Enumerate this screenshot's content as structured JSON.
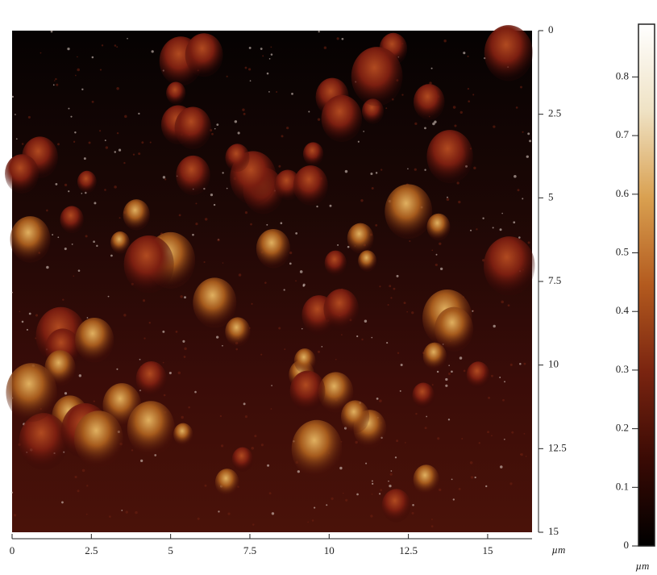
{
  "chart_data": {
    "type": "image",
    "unit": "µm",
    "xlim": [
      0,
      16.4
    ],
    "xticks": [
      0,
      2.5,
      5,
      7.5,
      10,
      12.5,
      15
    ],
    "ylim": [
      0,
      15
    ],
    "yticks": [
      0,
      2.5,
      5,
      7.5,
      10,
      12.5,
      15
    ],
    "clim": [
      0,
      0.89
    ],
    "cticks": [
      0,
      0.1,
      0.2,
      0.3,
      0.4,
      0.5,
      0.6,
      0.7,
      0.8
    ],
    "colormap": [
      "#000000",
      "#3a0a04",
      "#7a2410",
      "#b35a1e",
      "#d9a050",
      "#efe2c4",
      "#ffffff"
    ]
  }
}
